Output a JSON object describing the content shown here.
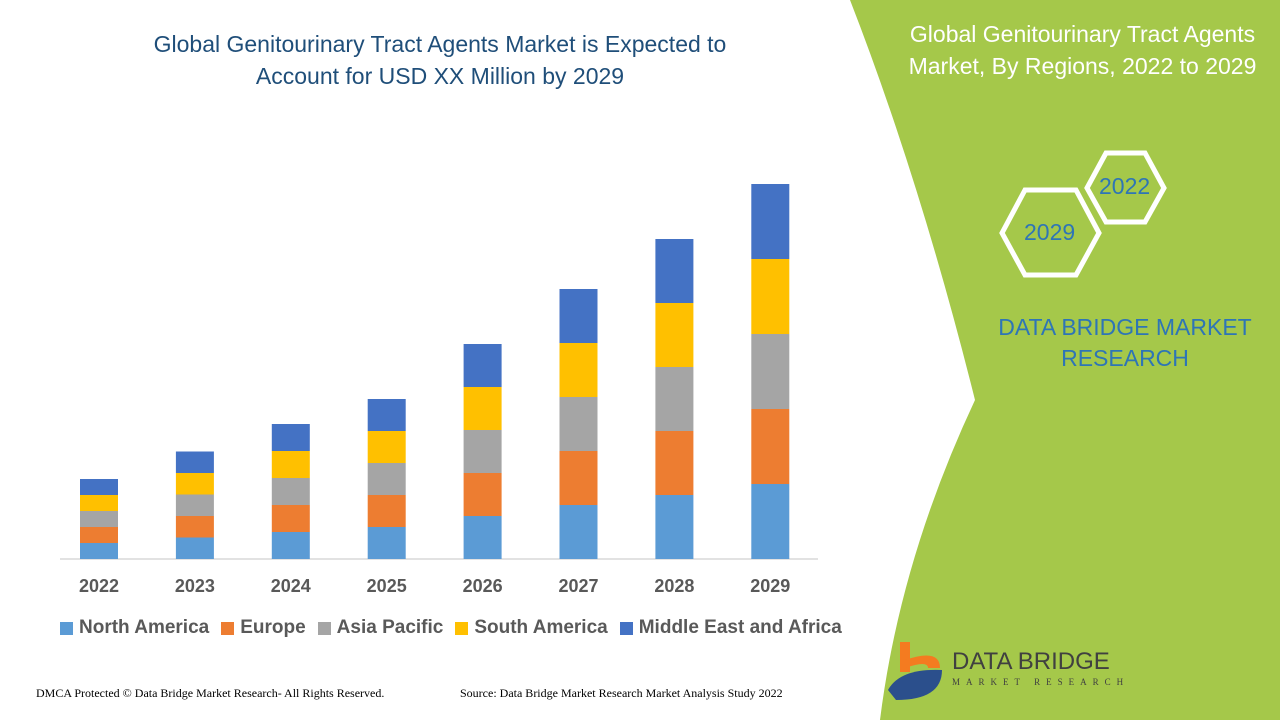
{
  "header": {
    "title_line1": "Global Genitourinary Tract Agents Market is Expected to",
    "title_line2": "Account for USD XX Million by 2029"
  },
  "side_panel": {
    "title_line1": "Global Genitourinary Tract Agents",
    "title_line2": "Market, By Regions, 2022 to 2029",
    "hex_years": [
      "2022",
      "2029"
    ],
    "brand_line1": "DATA BRIDGE MARKET",
    "brand_line2": "RESEARCH",
    "logo_name": "DATA BRIDGE",
    "logo_sub": "MARKET RESEARCH",
    "color": "#a5c84a"
  },
  "footer": {
    "left": "DMCA Protected © Data Bridge Market Research- All Rights Reserved.",
    "right": "Source: Data Bridge Market Research Market Analysis Study 2022"
  },
  "chart_data": {
    "type": "bar",
    "stacked": true,
    "title": "Global Genitourinary Tract Agents Market is Expected to Account for USD XX Million by 2029",
    "categories": [
      "2022",
      "2023",
      "2024",
      "2025",
      "2026",
      "2027",
      "2028",
      "2029"
    ],
    "legend_position": "bottom",
    "grid": false,
    "y_axis_shown": false,
    "series": [
      {
        "name": "North America",
        "color": "#5b9bd5",
        "values": [
          16,
          21.5,
          27,
          32,
          43,
          54,
          64,
          75
        ]
      },
      {
        "name": "Europe",
        "color": "#ed7d31",
        "values": [
          16,
          21.5,
          27,
          32,
          43,
          54,
          64,
          75
        ]
      },
      {
        "name": "Asia Pacific",
        "color": "#a5a5a5",
        "values": [
          16,
          21.5,
          27,
          32,
          43,
          54,
          64,
          75
        ]
      },
      {
        "name": "South America",
        "color": "#ffc000",
        "values": [
          16,
          21.5,
          27,
          32,
          43,
          54,
          64,
          75
        ]
      },
      {
        "name": "Middle East and Africa",
        "color": "#4472c4",
        "values": [
          16,
          21.5,
          27,
          32,
          43,
          54,
          64,
          75
        ]
      }
    ]
  }
}
